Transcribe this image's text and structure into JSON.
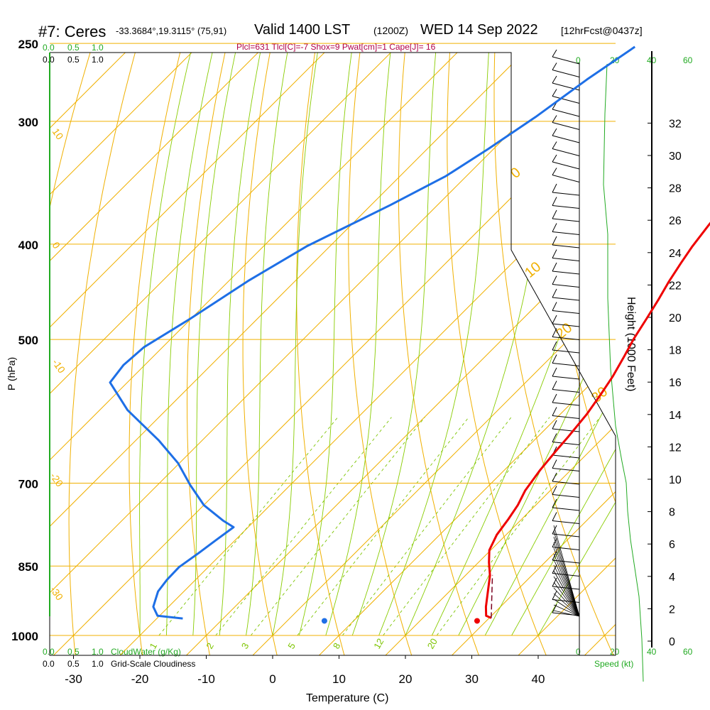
{
  "header": {
    "station": "#7: Ceres",
    "coords": "-33.3684°,19.3115° (75,91)",
    "valid": "Valid 1400 LST",
    "utc": "(1200Z)",
    "date": "WED 14 Sep 2022",
    "fcst": "[12hrFcst@0437z]",
    "indices": "Plcl=631 Tlcl[C]=-7 Shox=9 Pwat[cm]=1 Cape[J]= 16"
  },
  "legends": {
    "cloudwater_ticks": [
      "0.0",
      "0.5",
      "1.0"
    ],
    "cloudiness_ticks": [
      "0.0",
      "0.5",
      "1.0"
    ],
    "cloudwater_label": "CloudWater (g/Kg)",
    "cloudiness_label": "Grid-Scale Cloudiness",
    "speed_label": "Speed (kt)",
    "speed_ticks": [
      "0",
      "20",
      "40",
      "60"
    ]
  },
  "colors": {
    "temperature": "#ee0000",
    "dewpoint": "#1e6fe6",
    "isotherm": "#f0b000",
    "dry_adiabat": "#f0b000",
    "moist_adiabat": "#88cc00",
    "mixing_ratio": "#7cc400",
    "cloud_axis": "#22aa22",
    "indices": "#b0004a",
    "height_axis": "#000000"
  },
  "chart_data": {
    "type": "line",
    "xlabel": "Temperature (C)",
    "ylabel": "P (hPa)",
    "y2label": "Height (1000 Feet)",
    "x_ticks": [
      -30,
      -20,
      -10,
      0,
      10,
      20,
      30,
      40
    ],
    "p_ticks": [
      250,
      300,
      400,
      500,
      700,
      850,
      1000
    ],
    "height_ticks": [
      0,
      2,
      4,
      6,
      8,
      10,
      12,
      14,
      16,
      18,
      20,
      22,
      24,
      26,
      28,
      30,
      32
    ],
    "log_pressure": true,
    "skew": true,
    "series": [
      {
        "key": "temperature",
        "points": [
          [
            -3.1,
            253
          ],
          [
            -2.0,
            270
          ],
          [
            -0.6,
            289
          ],
          [
            0.5,
            304
          ],
          [
            1.4,
            320
          ],
          [
            2.1,
            335
          ],
          [
            2.7,
            350
          ],
          [
            3.3,
            367
          ],
          [
            3.9,
            383
          ],
          [
            4.6,
            402
          ],
          [
            5.4,
            418
          ],
          [
            6.4,
            437
          ],
          [
            7.5,
            455
          ],
          [
            8.6,
            476
          ],
          [
            9.7,
            499
          ],
          [
            10.9,
            520
          ],
          [
            12.2,
            545
          ],
          [
            13.2,
            571
          ],
          [
            14.0,
            596
          ],
          [
            14.6,
            628
          ],
          [
            14.9,
            650
          ],
          [
            15.4,
            680
          ],
          [
            16.2,
            712
          ],
          [
            17.3,
            737
          ],
          [
            18.0,
            762
          ],
          [
            18.6,
            790
          ],
          [
            19.8,
            819
          ],
          [
            21.6,
            843
          ],
          [
            23.7,
            869
          ],
          [
            27.8,
            935
          ],
          [
            29.2,
            955
          ],
          [
            30.3,
            960
          ]
        ]
      },
      {
        "key": "dewpoint",
        "points": [
          [
            -34.1,
            252
          ],
          [
            -36.4,
            272
          ],
          [
            -38.5,
            297
          ],
          [
            -40.8,
            320
          ],
          [
            -43.1,
            341
          ],
          [
            -47.1,
            365
          ],
          [
            -53.5,
            402
          ],
          [
            -57.1,
            436
          ],
          [
            -60.1,
            476
          ],
          [
            -62.8,
            509
          ],
          [
            -63.2,
            531
          ],
          [
            -62.6,
            553
          ],
          [
            -55.8,
            590
          ],
          [
            -46.6,
            633
          ],
          [
            -40.2,
            668
          ],
          [
            -35.1,
            703
          ],
          [
            -30.0,
            737
          ],
          [
            -24.8,
            764
          ],
          [
            -22.2,
            776
          ],
          [
            -22.9,
            800
          ],
          [
            -23.5,
            823
          ],
          [
            -24.4,
            852
          ],
          [
            -24.3,
            878
          ],
          [
            -23.9,
            902
          ],
          [
            -22.3,
            935
          ],
          [
            -20.3,
            955
          ],
          [
            -16.1,
            961
          ]
        ]
      }
    ],
    "surface_points": [
      {
        "key": "temperature",
        "temp": 30.8,
        "p": 960
      },
      {
        "key": "dewpoint",
        "temp": 7.8,
        "p": 960
      }
    ],
    "parcel_dashed_segment": [
      [
        30.3,
        960
      ],
      [
        24.0,
        868
      ]
    ],
    "isotherm_labels": [
      {
        "text": "10"
      },
      {
        "text": "0"
      },
      {
        "text": "-10"
      },
      {
        "text": "-20"
      },
      {
        "text": "-30"
      }
    ],
    "dry_adiabat_labels": [
      {
        "text": "0"
      },
      {
        "text": "10"
      },
      {
        "text": "20"
      },
      {
        "text": "30"
      }
    ],
    "mixing_ratio_labels": [
      "1",
      "2",
      "3",
      "5",
      "8",
      "12",
      "20"
    ],
    "height_profile_note": "cloud-profile boundary",
    "cloud_speed_profile": [
      [
        65,
        90
      ],
      [
        62,
        160
      ],
      [
        60,
        260
      ],
      [
        66,
        330
      ],
      [
        66,
        420
      ],
      [
        70,
        520
      ],
      [
        77,
        600
      ],
      [
        86,
        650
      ],
      [
        92,
        680
      ],
      [
        94,
        720
      ],
      [
        98,
        760
      ],
      [
        104,
        800
      ],
      [
        110,
        840
      ],
      [
        114,
        900
      ],
      [
        116,
        960
      ]
    ]
  }
}
